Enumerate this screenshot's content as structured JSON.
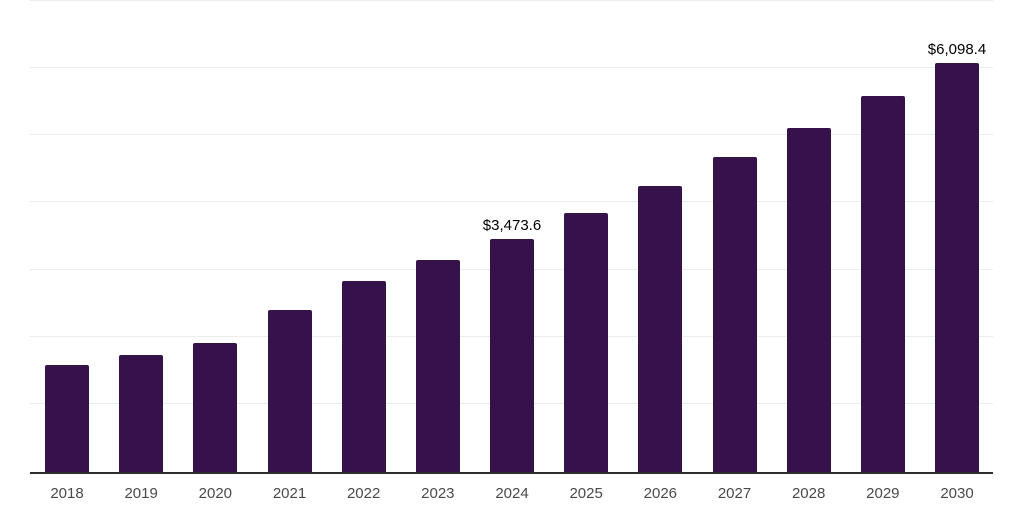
{
  "chart_data": {
    "type": "bar",
    "title": "",
    "xlabel": "",
    "ylabel": "",
    "categories": [
      "2018",
      "2019",
      "2020",
      "2021",
      "2022",
      "2023",
      "2024",
      "2025",
      "2026",
      "2027",
      "2028",
      "2029",
      "2030"
    ],
    "values": [
      1600,
      1750,
      1920,
      2415,
      2850,
      3155,
      3473.6,
      3860,
      4260,
      4690,
      5125,
      5605,
      6098.4
    ],
    "data_labels": [
      "",
      "",
      "",
      "",
      "",
      "",
      "$3,473.6",
      "",
      "",
      "",
      "",
      "",
      "$6,098.4"
    ],
    "ylim": [
      0,
      7000
    ],
    "gridline_interval": 1000,
    "grid": true,
    "legend_position": "none",
    "colors": {
      "bar": "#35124A",
      "gridline": "#ececec",
      "axis_line": "#2e2e2e",
      "data_label_text": "#000000",
      "tick_label_text": "#4a4a4a",
      "background": "#ffffff"
    }
  }
}
